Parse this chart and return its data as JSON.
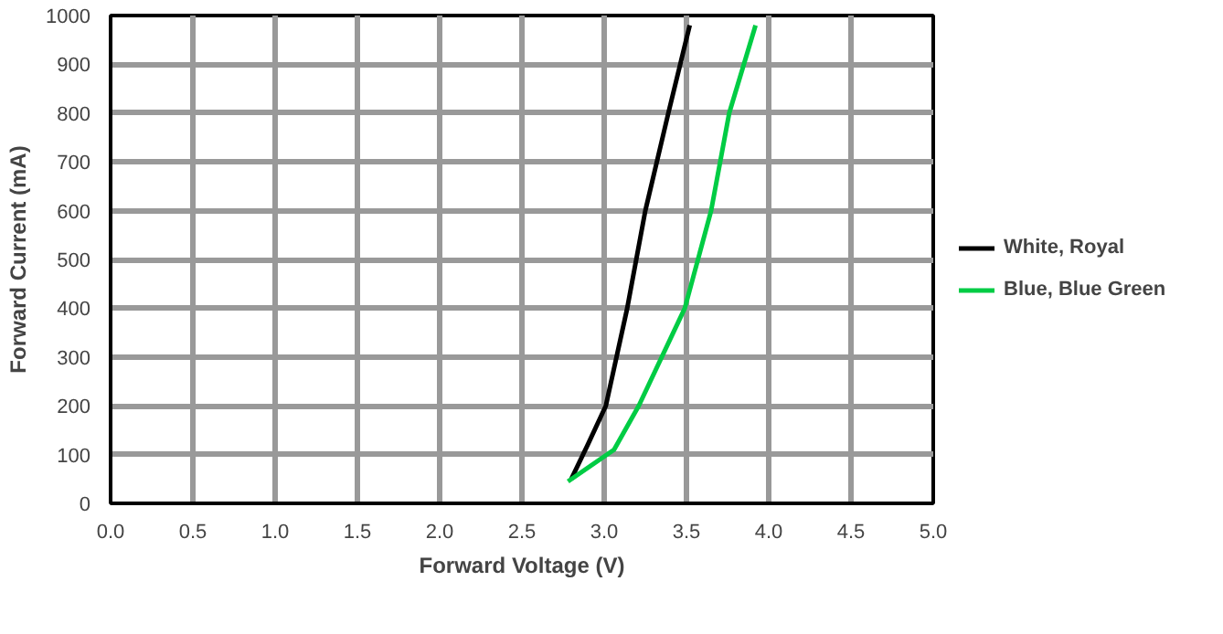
{
  "chart_data": {
    "type": "line",
    "xlabel": "Forward Voltage (V)",
    "ylabel": "Forward Current (mA)",
    "xlim": [
      0,
      5
    ],
    "ylim": [
      0,
      1000
    ],
    "xticks": [
      {
        "value": 0,
        "label": "0.0"
      },
      {
        "value": 0.5,
        "label": "0.5"
      },
      {
        "value": 1,
        "label": "1.0"
      },
      {
        "value": 1.5,
        "label": "1.5"
      },
      {
        "value": 2,
        "label": "2.0"
      },
      {
        "value": 2.5,
        "label": "2.5"
      },
      {
        "value": 3,
        "label": "3.0"
      },
      {
        "value": 3.5,
        "label": "3.5"
      },
      {
        "value": 4,
        "label": "4.0"
      },
      {
        "value": 4.5,
        "label": "4.5"
      },
      {
        "value": 5,
        "label": "5.0"
      }
    ],
    "yticks": [
      0,
      100,
      200,
      300,
      400,
      500,
      600,
      700,
      800,
      900,
      1000
    ],
    "grid": true,
    "legend": "right",
    "line_style": "solid",
    "series": [
      {
        "name": "White, Royal",
        "color": "#000000",
        "x": [
          2.8,
          2.9,
          3.01,
          3.14,
          3.25,
          3.39,
          3.52
        ],
        "values": [
          50,
          120,
          200,
          400,
          600,
          800,
          980
        ]
      },
      {
        "name": "Blue, Blue Green",
        "color": "#00cc44",
        "x": [
          2.78,
          3.06,
          3.21,
          3.49,
          3.65,
          3.76,
          3.92
        ],
        "values": [
          45,
          110,
          200,
          400,
          600,
          800,
          980
        ]
      }
    ]
  }
}
